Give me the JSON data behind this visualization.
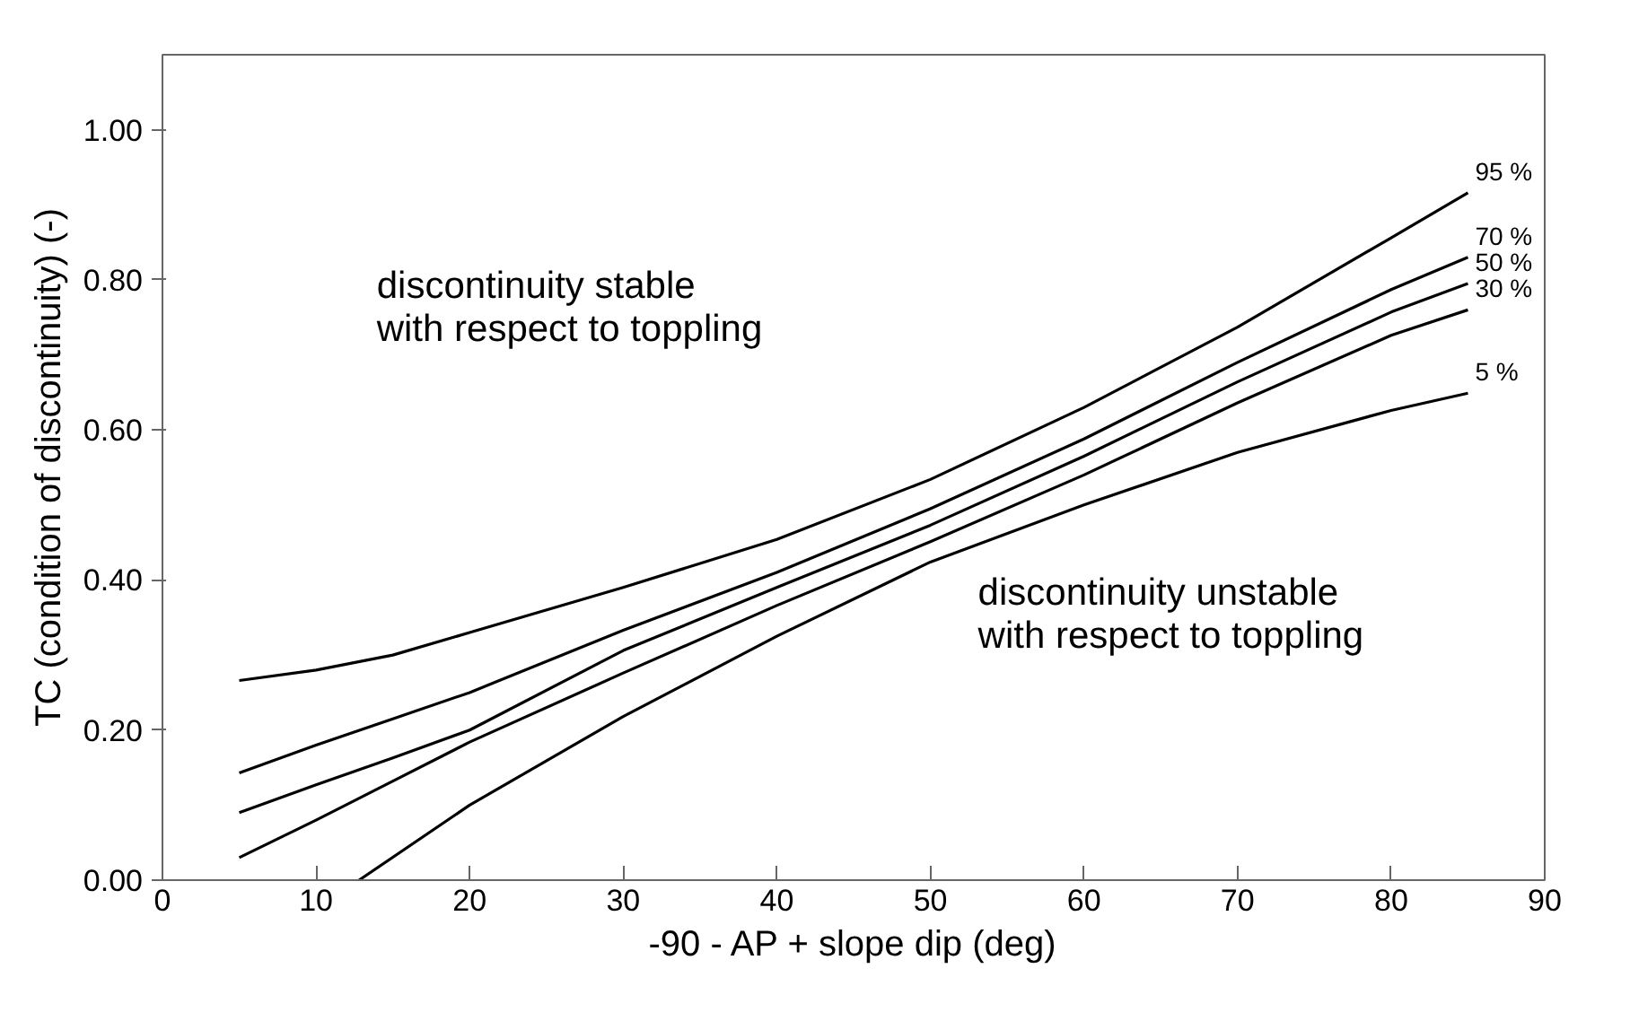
{
  "chart_data": {
    "type": "line",
    "xlabel": "-90 - AP + slope dip (deg)",
    "ylabel": "TC (condition of discontinuity) (-)",
    "x": [
      5,
      10,
      15,
      20,
      30,
      40,
      50,
      60,
      70,
      80,
      85
    ],
    "series": [
      {
        "name": "95 %",
        "color": "#000000",
        "values": [
          0.266,
          0.28,
          0.3,
          0.33,
          0.39,
          0.454,
          0.534,
          0.63,
          0.737,
          0.856,
          0.916
        ]
      },
      {
        "name": "70 %",
        "color": "#000000",
        "values": [
          0.143,
          0.18,
          0.215,
          0.25,
          0.333,
          0.41,
          0.495,
          0.588,
          0.69,
          0.787,
          0.83
        ]
      },
      {
        "name": "50 %",
        "color": "#000000",
        "values": [
          0.09,
          0.127,
          0.163,
          0.2,
          0.306,
          0.39,
          0.473,
          0.565,
          0.664,
          0.757,
          0.795
        ]
      },
      {
        "name": "30 %",
        "color": "#000000",
        "values": [
          0.03,
          0.08,
          0.132,
          0.184,
          0.276,
          0.366,
          0.451,
          0.54,
          0.636,
          0.726,
          0.76
        ]
      },
      {
        "name": "5 %",
        "color": "#000000",
        "x": [
          12.8,
          20,
          30,
          40,
          50,
          60,
          70,
          80,
          85
        ],
        "values": [
          0,
          0.1,
          0.218,
          0.325,
          0.424,
          0.5,
          0.57,
          0.626,
          0.649
        ]
      }
    ],
    "xlim": [
      0,
      90
    ],
    "ylim": [
      0,
      1.1
    ],
    "xticks": [
      0,
      10,
      20,
      30,
      40,
      50,
      60,
      70,
      80,
      90
    ],
    "yticks": [
      {
        "value": 0,
        "label": "0.00"
      },
      {
        "value": 0.2,
        "label": "0.20"
      },
      {
        "value": 0.4,
        "label": "0.40"
      },
      {
        "value": 0.6,
        "label": "0.60"
      },
      {
        "value": 0.8,
        "label": "0.80"
      },
      {
        "value": 1.0,
        "label": "1.00"
      }
    ],
    "grid": false,
    "legend": false,
    "marker": "none",
    "line_style": "solid",
    "annotations": [
      "discontinuity stable\nwith respect to toppling",
      "discontinuity unstable\nwith respect to toppling"
    ]
  }
}
